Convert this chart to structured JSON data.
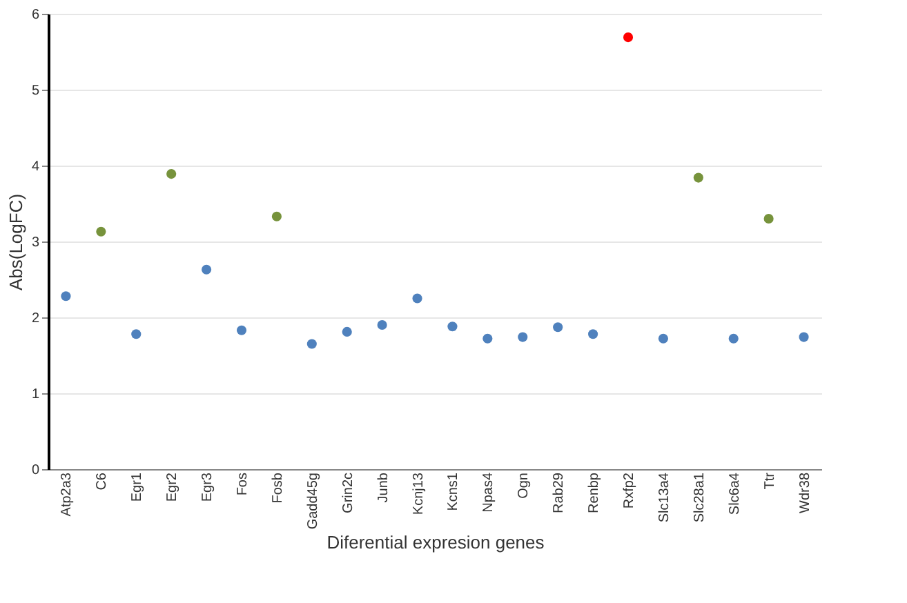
{
  "chart_data": {
    "type": "scatter",
    "xlabel": "Diferential expresion genes",
    "ylabel": "Abs(LogFC)",
    "categories": [
      "Atp2a3",
      "C6",
      "Egr1",
      "Egr2",
      "Egr3",
      "Fos",
      "Fosb",
      "Gadd45g",
      "Grin2c",
      "Junb",
      "Kcnj13",
      "Kcns1",
      "Npas4",
      "Ogn",
      "Rab29",
      "Renbp",
      "Rxfp2",
      "Slc13a4",
      "Slc28a1",
      "Slc6a4",
      "Ttr",
      "Wdr38"
    ],
    "values": [
      2.28,
      3.13,
      1.78,
      3.89,
      2.63,
      1.83,
      3.33,
      1.65,
      1.81,
      1.9,
      2.25,
      1.88,
      1.72,
      1.74,
      1.87,
      1.78,
      5.69,
      1.72,
      3.84,
      1.72,
      3.3,
      1.74
    ],
    "colors": [
      "#4f81bd",
      "#77933c",
      "#4f81bd",
      "#77933c",
      "#4f81bd",
      "#4f81bd",
      "#77933c",
      "#4f81bd",
      "#4f81bd",
      "#4f81bd",
      "#4f81bd",
      "#4f81bd",
      "#4f81bd",
      "#4f81bd",
      "#4f81bd",
      "#4f81bd",
      "#ff0000",
      "#4f81bd",
      "#77933c",
      "#4f81bd",
      "#77933c",
      "#4f81bd"
    ],
    "ylim": [
      0,
      6
    ],
    "yticks": [
      0,
      1,
      2,
      3,
      4,
      5,
      6
    ],
    "grid": "y"
  }
}
